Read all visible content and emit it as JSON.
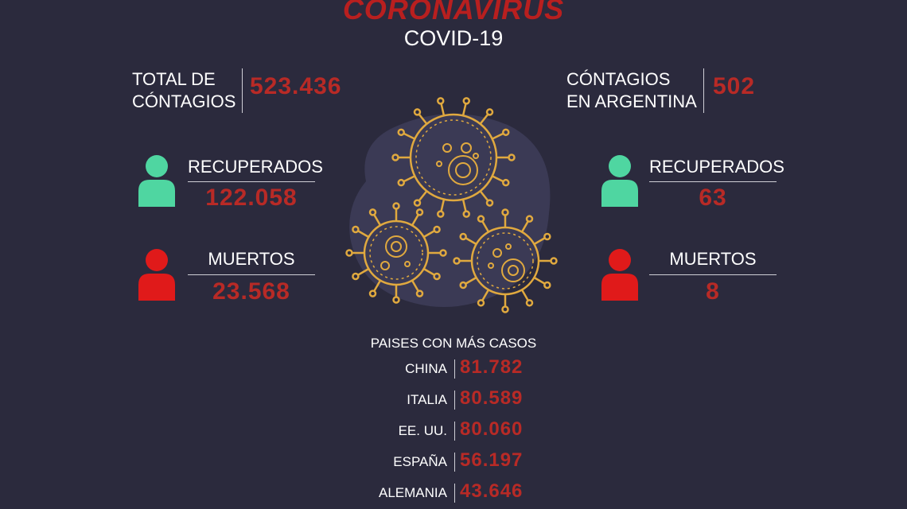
{
  "header": {
    "title": "CORONAVIRUS",
    "subtitle": "COVID-19"
  },
  "global": {
    "total_label_line1": "TOTAL DE",
    "total_label_line2": "CÓNTAGIOS",
    "total_value": "523.436",
    "recovered_label": "RECUPERADOS",
    "recovered_value": "122.058",
    "deaths_label": "MUERTOS",
    "deaths_value": "23.568"
  },
  "argentina": {
    "total_label_line1": "CÓNTAGIOS",
    "total_label_line2": "EN ARGENTINA",
    "total_value": "502",
    "recovered_label": "RECUPERADOS",
    "recovered_value": "63",
    "deaths_label": "MUERTOS",
    "deaths_value": "8"
  },
  "countries": {
    "heading": "PAISES CON MÁS CASOS",
    "rows": [
      {
        "name": "CHINA",
        "value": "81.782"
      },
      {
        "name": "ITALIA",
        "value": "80.589"
      },
      {
        "name": "EE. UU.",
        "value": "80.060"
      },
      {
        "name": "ESPAÑA",
        "value": "56.197"
      },
      {
        "name": "ALEMANIA",
        "value": "43.646"
      }
    ]
  },
  "colors": {
    "background": "#2b2a3d",
    "accent_red": "#b82a26",
    "recovered_green": "#4fd6a1",
    "deaths_red": "#e01a1a",
    "virus_gold": "#e0a93f"
  },
  "icons": {
    "recovered": "person-icon",
    "deaths": "person-icon",
    "center": "virus-icon"
  }
}
